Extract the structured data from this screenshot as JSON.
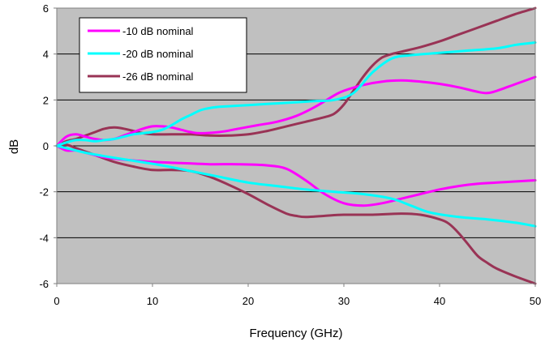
{
  "chart_data": {
    "type": "line",
    "title": "",
    "xlabel": "Frequency (GHz)",
    "ylabel": "dB",
    "xlim": [
      0,
      50
    ],
    "ylim": [
      -6,
      6
    ],
    "xticks": [
      0,
      10,
      20,
      30,
      40,
      50
    ],
    "yticks": [
      -6,
      -4,
      -2,
      0,
      2,
      4,
      6
    ],
    "grid": "horizontal",
    "legend": "top-left",
    "plot_background": "#c0c0c0",
    "series": [
      {
        "name": "-10 dB nominal",
        "color": "#ff00ff",
        "upper": {
          "x": [
            0,
            1,
            2,
            3,
            4,
            5,
            6,
            7,
            8,
            9,
            10,
            11,
            12,
            13,
            14,
            15,
            17,
            19,
            21,
            23,
            25,
            27,
            29,
            30,
            32,
            34,
            36,
            38,
            40,
            42,
            44,
            45,
            46,
            48,
            50
          ],
          "y": [
            0.0,
            0.4,
            0.5,
            0.4,
            0.3,
            0.25,
            0.3,
            0.45,
            0.6,
            0.75,
            0.85,
            0.85,
            0.8,
            0.7,
            0.6,
            0.55,
            0.6,
            0.75,
            0.9,
            1.05,
            1.3,
            1.7,
            2.2,
            2.4,
            2.65,
            2.8,
            2.85,
            2.8,
            2.7,
            2.55,
            2.35,
            2.3,
            2.4,
            2.7,
            3.0
          ]
        },
        "lower": {
          "x": [
            0,
            1,
            2,
            3,
            5,
            7,
            10,
            13,
            16,
            19,
            22,
            24,
            26,
            28,
            30,
            32,
            34,
            36,
            38,
            40,
            42,
            44,
            46,
            48,
            50
          ],
          "y": [
            0.0,
            -0.2,
            -0.2,
            -0.3,
            -0.5,
            -0.6,
            -0.7,
            -0.75,
            -0.8,
            -0.8,
            -0.85,
            -1.0,
            -1.5,
            -2.1,
            -2.5,
            -2.6,
            -2.5,
            -2.3,
            -2.1,
            -1.9,
            -1.75,
            -1.65,
            -1.6,
            -1.55,
            -1.5
          ]
        }
      },
      {
        "name": "-20 dB nominal",
        "color": "#00ffff",
        "upper": {
          "x": [
            0,
            1,
            2,
            3,
            4,
            5,
            6,
            7,
            8,
            9,
            10,
            11,
            12,
            13,
            14,
            15,
            16,
            17,
            19,
            21,
            23,
            25,
            27,
            29,
            31,
            33,
            35,
            37,
            40,
            43,
            46,
            48,
            50
          ],
          "y": [
            0.0,
            0.15,
            0.25,
            0.25,
            0.2,
            0.25,
            0.3,
            0.4,
            0.5,
            0.55,
            0.6,
            0.7,
            0.9,
            1.15,
            1.35,
            1.55,
            1.65,
            1.7,
            1.75,
            1.8,
            1.85,
            1.9,
            1.95,
            2.0,
            2.3,
            3.2,
            3.8,
            3.95,
            4.05,
            4.15,
            4.25,
            4.4,
            4.5
          ]
        },
        "lower": {
          "x": [
            0,
            1,
            2,
            3,
            5,
            8,
            11,
            14,
            17,
            20,
            23,
            26,
            29,
            32,
            35,
            37,
            39,
            42,
            45,
            48,
            50
          ],
          "y": [
            0.0,
            -0.1,
            -0.2,
            -0.3,
            -0.45,
            -0.65,
            -0.85,
            -1.1,
            -1.35,
            -1.6,
            -1.75,
            -1.9,
            -2.0,
            -2.1,
            -2.3,
            -2.6,
            -2.9,
            -3.1,
            -3.2,
            -3.35,
            -3.5
          ]
        }
      },
      {
        "name": "-26 dB nominal",
        "color": "#993355",
        "upper": {
          "x": [
            0,
            1,
            2,
            3,
            4,
            5,
            6,
            7,
            8,
            9,
            10,
            12,
            14,
            16,
            18,
            20,
            22,
            24,
            26,
            28,
            29,
            30,
            31,
            32,
            33,
            34,
            35,
            36,
            38,
            40,
            42,
            44,
            46,
            48,
            50
          ],
          "y": [
            0.0,
            0.2,
            0.3,
            0.45,
            0.6,
            0.75,
            0.8,
            0.75,
            0.65,
            0.55,
            0.5,
            0.5,
            0.5,
            0.45,
            0.45,
            0.5,
            0.65,
            0.85,
            1.05,
            1.25,
            1.4,
            1.8,
            2.4,
            3.0,
            3.5,
            3.85,
            4.0,
            4.1,
            4.3,
            4.55,
            4.85,
            5.15,
            5.45,
            5.75,
            6.0
          ]
        },
        "lower": {
          "x": [
            0,
            1,
            2,
            3,
            4,
            6,
            8,
            10,
            12,
            14,
            16,
            18,
            20,
            22,
            24,
            25,
            26,
            28,
            30,
            33,
            36,
            38,
            40,
            41,
            42,
            43,
            44,
            45,
            46,
            48,
            50
          ],
          "y": [
            0.0,
            0.05,
            -0.1,
            -0.25,
            -0.4,
            -0.7,
            -0.9,
            -1.05,
            -1.05,
            -1.1,
            -1.35,
            -1.7,
            -2.1,
            -2.55,
            -2.95,
            -3.05,
            -3.1,
            -3.05,
            -3.0,
            -3.0,
            -2.95,
            -3.0,
            -3.2,
            -3.4,
            -3.8,
            -4.3,
            -4.8,
            -5.1,
            -5.35,
            -5.7,
            -6.0
          ]
        }
      }
    ]
  }
}
